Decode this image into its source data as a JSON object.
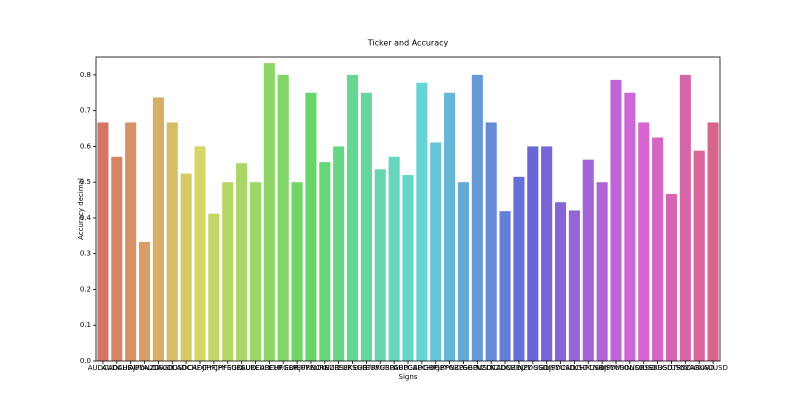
{
  "chart_data": {
    "type": "bar",
    "title": "Ticker and Accuracy",
    "x_label": "Signs",
    "y_label": "Accuracy decimal",
    "categories": [
      "AUDCAD",
      "AUDCHF",
      "AUDJPY",
      "AUDNZD",
      "AUDSGD",
      "AUDUSD",
      "CADCHF",
      "CADJPY",
      "CHFJPY",
      "CHFSGD",
      "EURAUD",
      "EURCAD",
      "EURCHF",
      "EURGBP",
      "EURJPY",
      "EURNOK",
      "EURNZD",
      "EURSEK",
      "EURSGD",
      "EURTRY",
      "EURUSD",
      "GBPAUD",
      "GBPCAD",
      "GBPCHF",
      "GBPJPY",
      "GBPNZD",
      "GBPSGD",
      "GBPUSD",
      "NZDCAD",
      "NZDCHF",
      "NZDJPY",
      "NZDUSD",
      "SGDJPY",
      "USDCAD",
      "USDCHF",
      "USDCNH",
      "USDJPY",
      "USDMXN",
      "USDNOK",
      "USDSEK",
      "USDSGD",
      "USDTRY",
      "USDZAR",
      "XAGUSD",
      "XAUUSD"
    ],
    "values": [
      0.667,
      0.571,
      0.667,
      0.333,
      0.737,
      0.667,
      0.524,
      0.6,
      0.412,
      0.5,
      0.553,
      0.5,
      0.833,
      0.8,
      0.5,
      0.75,
      0.556,
      0.6,
      0.8,
      0.75,
      0.536,
      0.571,
      0.52,
      0.778,
      0.611,
      0.75,
      0.5,
      0.8,
      0.667,
      0.419,
      0.515,
      0.6,
      0.6,
      0.444,
      0.421,
      0.563,
      0.5,
      0.786,
      0.75,
      0.667,
      0.625,
      0.467,
      0.8,
      0.588,
      0.667
    ],
    "palette": "husl",
    "ylim": [
      0,
      0.85
    ],
    "yticks": [
      {
        "value": 0,
        "label": "0.0"
      },
      0.1,
      0.2,
      0.3,
      0.4,
      0.5,
      0.6,
      0.7,
      0.8
    ]
  }
}
